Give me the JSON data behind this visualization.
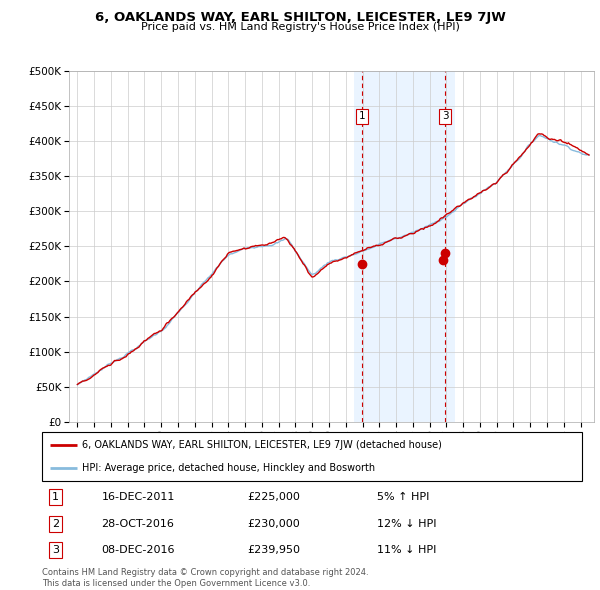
{
  "title": "6, OAKLANDS WAY, EARL SHILTON, LEICESTER, LE9 7JW",
  "subtitle": "Price paid vs. HM Land Registry's House Price Index (HPI)",
  "ylabel_ticks": [
    "£0",
    "£50K",
    "£100K",
    "£150K",
    "£200K",
    "£250K",
    "£300K",
    "£350K",
    "£400K",
    "£450K",
    "£500K"
  ],
  "ylim": [
    0,
    500000
  ],
  "ytick_vals": [
    0,
    50000,
    100000,
    150000,
    200000,
    250000,
    300000,
    350000,
    400000,
    450000,
    500000
  ],
  "legend_line1": "6, OAKLANDS WAY, EARL SHILTON, LEICESTER, LE9 7JW (detached house)",
  "legend_line2": "HPI: Average price, detached house, Hinckley and Bosworth",
  "transactions": [
    {
      "num": 1,
      "date": "16-DEC-2011",
      "price": 225000,
      "rel": "5% ↑ HPI",
      "year": 2011.96
    },
    {
      "num": 2,
      "date": "28-OCT-2016",
      "price": 230000,
      "rel": "12% ↓ HPI",
      "year": 2016.82
    },
    {
      "num": 3,
      "date": "08-DEC-2016",
      "price": 239950,
      "rel": "11% ↓ HPI",
      "year": 2016.93
    }
  ],
  "copyright": "Contains HM Land Registry data © Crown copyright and database right 2024.\nThis data is licensed under the Open Government Licence v3.0.",
  "bg_shade_start": 2011.5,
  "bg_shade_end": 2017.5,
  "line_color_red": "#cc0000",
  "line_color_blue": "#88bbdd",
  "marker_color": "#cc0000",
  "dashed_line_color": "#cc0000",
  "bg_shade_color": "#ddeeff",
  "xlim_left": 1994.5,
  "xlim_right": 2025.8
}
